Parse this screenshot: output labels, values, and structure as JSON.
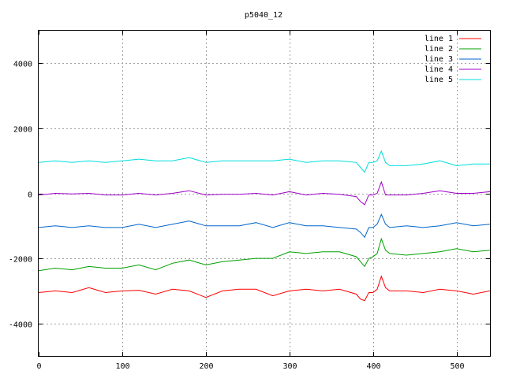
{
  "chart_data": {
    "type": "line",
    "title": "p5040_12",
    "xlabel": "",
    "ylabel": "",
    "xlim": [
      0,
      540
    ],
    "ylim": [
      -5000,
      5000
    ],
    "xticks": [
      0,
      100,
      200,
      300,
      400,
      500
    ],
    "yticks": [
      -4000,
      -2000,
      0,
      2000,
      4000
    ],
    "xtick_labels": [
      "0",
      "100",
      "200",
      "300",
      "400",
      "500"
    ],
    "ytick_labels": [
      "-4000",
      "-2000",
      "0",
      "2000",
      "4000"
    ],
    "grid": true,
    "legend_position": "top-right",
    "x": [
      0,
      20,
      40,
      60,
      80,
      100,
      120,
      140,
      160,
      180,
      200,
      220,
      240,
      260,
      280,
      300,
      320,
      340,
      360,
      380,
      385,
      390,
      395,
      400,
      405,
      410,
      415,
      420,
      440,
      460,
      480,
      500,
      520,
      540
    ],
    "series": [
      {
        "name": "line 1",
        "color": "#ff0000",
        "values": [
          -3050,
          -3000,
          -3050,
          -2900,
          -3050,
          -3000,
          -2980,
          -3100,
          -2950,
          -3000,
          -3200,
          -3000,
          -2950,
          -2950,
          -3150,
          -3000,
          -2950,
          -3000,
          -2950,
          -3100,
          -3250,
          -3300,
          -3050,
          -3050,
          -2950,
          -2550,
          -2900,
          -3000,
          -3000,
          -3050,
          -2950,
          -3000,
          -3100,
          -3000
        ]
      },
      {
        "name": "line 2",
        "color": "#00a000",
        "values": [
          -2380,
          -2300,
          -2350,
          -2250,
          -2300,
          -2300,
          -2200,
          -2350,
          -2150,
          -2050,
          -2200,
          -2100,
          -2050,
          -2000,
          -2000,
          -1800,
          -1850,
          -1800,
          -1800,
          -1950,
          -2100,
          -2250,
          -2000,
          -1950,
          -1850,
          -1400,
          -1750,
          -1850,
          -1900,
          -1850,
          -1800,
          -1700,
          -1800,
          -1750
        ]
      },
      {
        "name": "line 3",
        "color": "#0066cc",
        "values": [
          -1050,
          -1000,
          -1050,
          -1000,
          -1050,
          -1050,
          -950,
          -1050,
          -950,
          -850,
          -1000,
          -1000,
          -1000,
          -900,
          -1050,
          -900,
          -1000,
          -1000,
          -1050,
          -1100,
          -1200,
          -1350,
          -1050,
          -1050,
          -950,
          -650,
          -950,
          -1050,
          -1000,
          -1050,
          -1000,
          -900,
          -1000,
          -950
        ]
      },
      {
        "name": "line 4",
        "color": "#a000c8",
        "values": [
          -50,
          0,
          -20,
          0,
          -50,
          -50,
          0,
          -50,
          0,
          80,
          -50,
          -30,
          -30,
          0,
          -50,
          50,
          -50,
          0,
          -30,
          -100,
          -250,
          -350,
          -50,
          -50,
          0,
          350,
          -50,
          -50,
          -50,
          0,
          80,
          0,
          0,
          50
        ]
      },
      {
        "name": "line 5",
        "color": "#00dddd",
        "values": [
          950,
          1000,
          950,
          1000,
          950,
          1000,
          1050,
          1000,
          1000,
          1100,
          950,
          1000,
          1000,
          1000,
          1000,
          1050,
          950,
          1000,
          1000,
          950,
          800,
          650,
          950,
          950,
          1000,
          1300,
          950,
          850,
          850,
          900,
          1000,
          850,
          900,
          900
        ]
      }
    ]
  }
}
